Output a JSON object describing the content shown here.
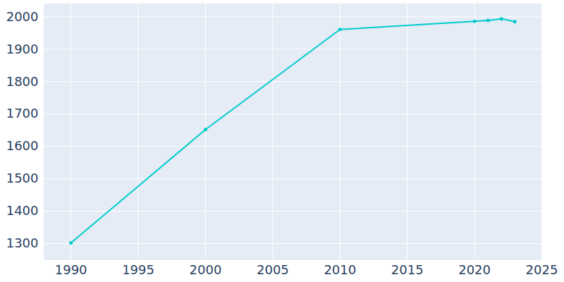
{
  "chart_data": {
    "type": "line",
    "x": [
      1990,
      2000,
      2010,
      2020,
      2021,
      2022,
      2023
    ],
    "values": [
      1302,
      1652,
      1961,
      1986,
      1989,
      1994,
      1985
    ],
    "color": "#00cccc",
    "marker": "circle",
    "xlim": [
      1988,
      2025
    ],
    "xticks": [
      1990,
      1995,
      2000,
      2005,
      2010,
      2015,
      2020,
      2025
    ],
    "ylim": [
      1250,
      2040
    ],
    "yticks": [
      1300,
      1400,
      1500,
      1600,
      1700,
      1800,
      1900,
      2000
    ],
    "grid": true
  }
}
